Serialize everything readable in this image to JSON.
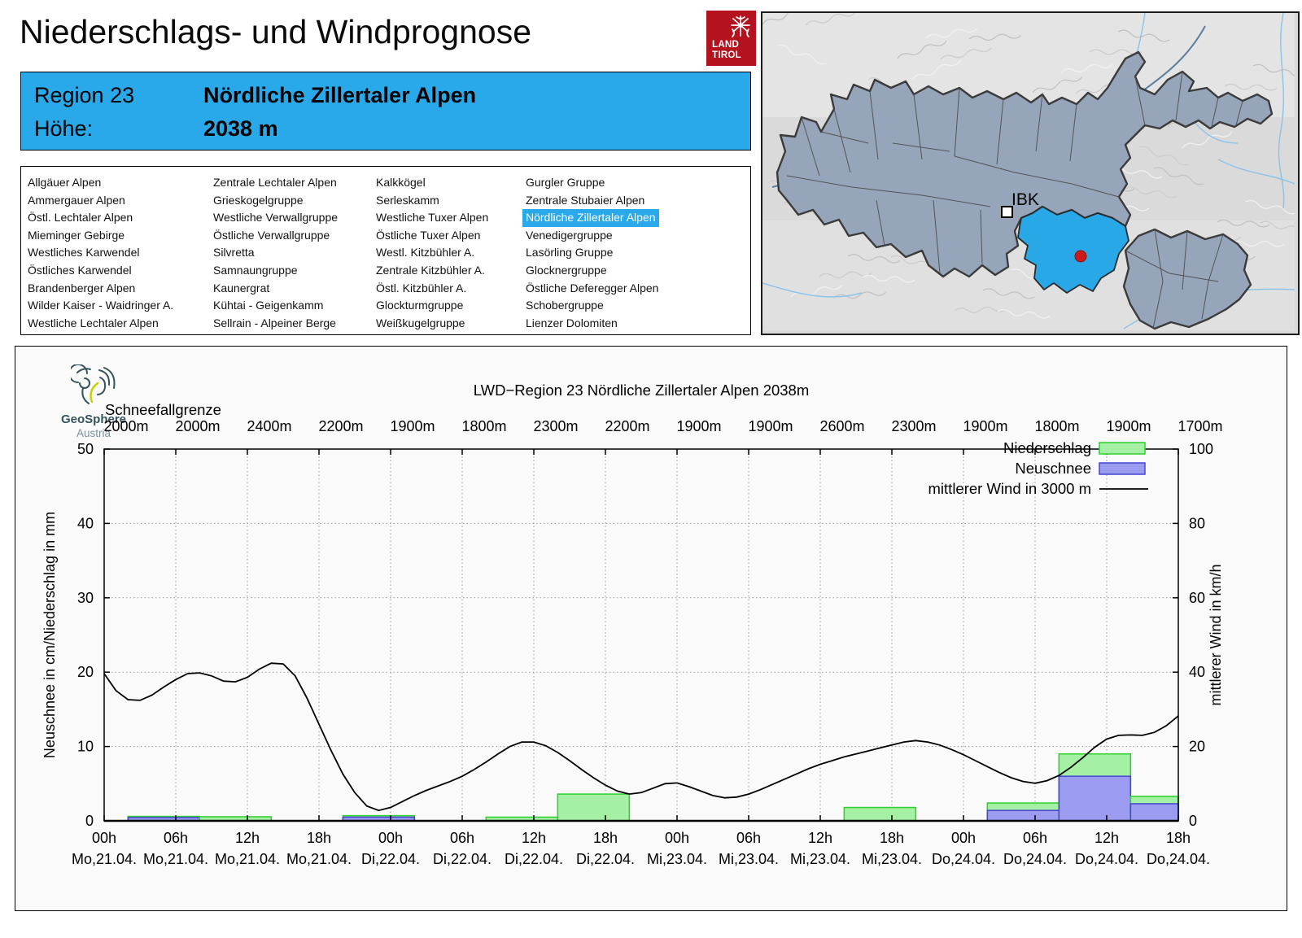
{
  "page": {
    "title": "Niederschlags- und Windprognose"
  },
  "tirol_logo": {
    "line1": "LAND",
    "line2": "TIROL",
    "bg_color": "#B5121F"
  },
  "region_header": {
    "region_label": "Region 23",
    "region_name": "Nördliche Zillertaler Alpen",
    "hoehe_label": "Höhe:",
    "hoehe_value": "2038 m",
    "bg_color": "#2AA9EA"
  },
  "region_list": {
    "selected": "Nördliche Zillertaler Alpen",
    "highlight_color": "#2AA9EA",
    "columns": [
      [
        "Allgäuer Alpen",
        "Ammergauer Alpen",
        "Östl. Lechtaler Alpen",
        "Mieminger Gebirge",
        "Westliches Karwendel",
        "Östliches Karwendel",
        "Brandenberger Alpen",
        "Wilder Kaiser - Waidringer A.",
        "Westliche Lechtaler Alpen"
      ],
      [
        "Zentrale Lechtaler Alpen",
        "Grieskogelgruppe",
        "Westliche Verwallgruppe",
        "Östliche Verwallgruppe",
        "Silvretta",
        "Samnaungruppe",
        "Kaunergrat",
        "Kühtai - Geigenkamm",
        "Sellrain - Alpeiner Berge"
      ],
      [
        "Kalkkögel",
        "Serleskamm",
        "Westliche Tuxer Alpen",
        "Östliche Tuxer Alpen",
        "Westl. Kitzbühler A.",
        "Zentrale Kitzbühler A.",
        "Östl. Kitzbühler A.",
        "Glockturmgruppe",
        "Weißkugelgruppe"
      ],
      [
        "Gurgler Gruppe",
        "Zentrale Stubaier Alpen",
        "Nördliche Zillertaler Alpen",
        "Venedigergruppe",
        "Lasörling Gruppe",
        "Glocknergruppe",
        "Östliche Deferegger Alpen",
        "Schobergruppe",
        "Lienzer Dolomiten"
      ]
    ]
  },
  "map": {
    "city_label": "IBK",
    "selected_region_color": "#29A8E8",
    "regions_color": "#96A5BA",
    "marker_color": "#CC1A1A"
  },
  "geosphere_logo": {
    "name": "GeoSphere",
    "country": "Austria"
  },
  "chart_data": {
    "type": "bar",
    "title": "LWD−Region 23 Nördliche Zillertaler Alpen 2038m",
    "snowline_label": "Schneefallgrenze",
    "snowline_values": [
      "2000m",
      "2000m",
      "2400m",
      "2200m",
      "1900m",
      "1800m",
      "2300m",
      "2200m",
      "1900m",
      "1900m",
      "2600m",
      "2300m",
      "1900m",
      "1800m",
      "1900m",
      "1700m"
    ],
    "ylabel_left": "Neuschnee in cm/Niederschlag in mm",
    "ylabel_right": "mittlerer Wind in km/h",
    "ylim_left": [
      0,
      50
    ],
    "ylim_right": [
      0,
      100
    ],
    "yticks_left": [
      0,
      10,
      20,
      30,
      40,
      50
    ],
    "yticks_right": [
      0,
      20,
      40,
      60,
      80,
      100
    ],
    "x_hours_range": [
      0,
      90
    ],
    "grid": "dotted",
    "legend_position": "top-right",
    "xticks": [
      {
        "hour": 0,
        "time": "00h",
        "date": "Mo,21.04."
      },
      {
        "hour": 6,
        "time": "06h",
        "date": "Mo,21.04."
      },
      {
        "hour": 12,
        "time": "12h",
        "date": "Mo,21.04."
      },
      {
        "hour": 18,
        "time": "18h",
        "date": "Mo,21.04."
      },
      {
        "hour": 24,
        "time": "00h",
        "date": "Di,22.04."
      },
      {
        "hour": 30,
        "time": "06h",
        "date": "Di,22.04."
      },
      {
        "hour": 36,
        "time": "12h",
        "date": "Di,22.04."
      },
      {
        "hour": 42,
        "time": "18h",
        "date": "Di,22.04."
      },
      {
        "hour": 48,
        "time": "00h",
        "date": "Mi,23.04."
      },
      {
        "hour": 54,
        "time": "06h",
        "date": "Mi,23.04."
      },
      {
        "hour": 60,
        "time": "12h",
        "date": "Mi,23.04."
      },
      {
        "hour": 66,
        "time": "18h",
        "date": "Mi,23.04."
      },
      {
        "hour": 72,
        "time": "00h",
        "date": "Do,24.04."
      },
      {
        "hour": 78,
        "time": "06h",
        "date": "Do,24.04."
      },
      {
        "hour": 84,
        "time": "12h",
        "date": "Do,24.04."
      },
      {
        "hour": 90,
        "time": "18h",
        "date": "Do,24.04."
      }
    ],
    "legend": [
      {
        "label": "Niederschlag",
        "swatch": "box",
        "fill": "#A5F0A5",
        "stroke": "#2FCF2F"
      },
      {
        "label": "Neuschnee",
        "swatch": "box",
        "fill": "#9B9BEF",
        "stroke": "#4445CF"
      },
      {
        "label": "mittlerer Wind in 3000 m",
        "swatch": "line",
        "stroke": "#000000"
      }
    ],
    "bars": [
      {
        "start_hour": 2,
        "end_hour": 8,
        "niederschlag_mm": 0.6,
        "neuschnee_cm": 0.45
      },
      {
        "start_hour": 8,
        "end_hour": 14,
        "niederschlag_mm": 0.55,
        "neuschnee_cm": 0
      },
      {
        "start_hour": 20,
        "end_hour": 26,
        "niederschlag_mm": 0.7,
        "neuschnee_cm": 0.5
      },
      {
        "start_hour": 32,
        "end_hour": 38,
        "niederschlag_mm": 0.5,
        "neuschnee_cm": 0
      },
      {
        "start_hour": 38,
        "end_hour": 44,
        "niederschlag_mm": 3.6,
        "neuschnee_cm": 0
      },
      {
        "start_hour": 62,
        "end_hour": 68,
        "niederschlag_mm": 1.8,
        "neuschnee_cm": 0
      },
      {
        "start_hour": 74,
        "end_hour": 80,
        "niederschlag_mm": 2.4,
        "neuschnee_cm": 1.4
      },
      {
        "start_hour": 80,
        "end_hour": 86,
        "niederschlag_mm": 9.0,
        "neuschnee_cm": 6.0
      },
      {
        "start_hour": 86,
        "end_hour": 90,
        "niederschlag_mm": 3.3,
        "neuschnee_cm": 2.3
      }
    ],
    "wind_series": {
      "name": "mittlerer Wind in 3000 m",
      "unit": "km/h",
      "start_hour": 0,
      "step_hours": 1,
      "values": [
        39.6,
        35.0,
        32.6,
        32.4,
        33.8,
        36.0,
        38.0,
        39.6,
        39.8,
        39.0,
        37.6,
        37.4,
        38.6,
        40.8,
        42.4,
        42.2,
        39.0,
        33.0,
        26.0,
        19.0,
        12.6,
        7.6,
        4.0,
        2.8,
        3.6,
        5.2,
        6.8,
        8.2,
        9.4,
        10.6,
        12.0,
        13.8,
        15.8,
        18.0,
        20.0,
        21.2,
        21.2,
        20.2,
        18.4,
        16.2,
        13.8,
        11.6,
        9.6,
        8.0,
        7.2,
        7.6,
        8.8,
        10.0,
        10.2,
        9.2,
        8.0,
        6.8,
        6.2,
        6.4,
        7.2,
        8.4,
        9.8,
        11.2,
        12.6,
        14.0,
        15.2,
        16.2,
        17.2,
        18.0,
        18.8,
        19.6,
        20.4,
        21.2,
        21.6,
        21.2,
        20.4,
        19.2,
        17.8,
        16.2,
        14.6,
        13.0,
        11.6,
        10.6,
        10.1,
        10.8,
        12.2,
        14.4,
        17.0,
        19.8,
        22.0,
        23.0,
        23.1,
        23.0,
        23.8,
        25.6,
        28.2
      ]
    },
    "colors": {
      "niederschlag_fill": "#A5F0A5",
      "niederschlag_stroke": "#2FCF2F",
      "neuschnee_fill": "#9B9BEF",
      "neuschnee_stroke": "#4445CF",
      "wind_line": "#000000",
      "grid": "#9a9a9a"
    }
  }
}
